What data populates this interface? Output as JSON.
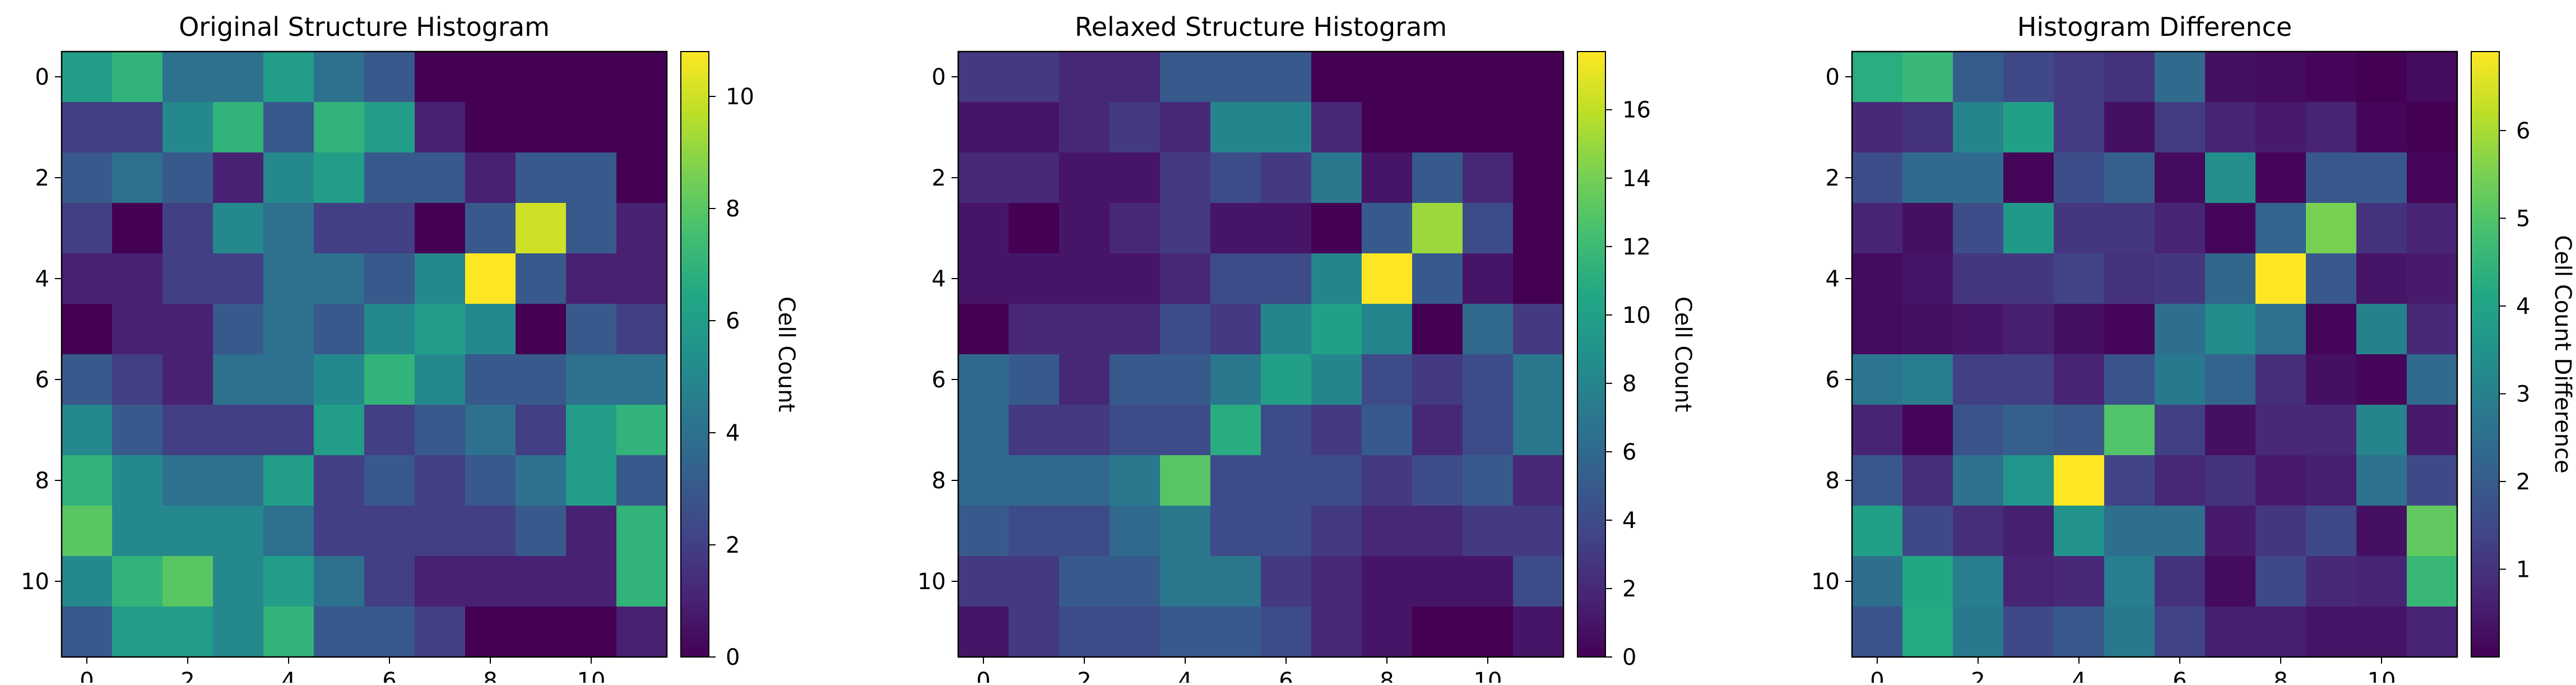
{
  "chart_data": [
    {
      "type": "heatmap",
      "title": "Original Structure Histogram",
      "colorbar_label": "Cell Count",
      "colormap": "viridis",
      "vmin": 0,
      "vmax": 10.8,
      "colorbar_ticks": [
        0,
        2,
        4,
        6,
        8,
        10
      ],
      "x_ticks": [
        0,
        2,
        4,
        6,
        8,
        10
      ],
      "y_ticks": [
        0,
        2,
        4,
        6,
        8,
        10
      ],
      "matrix": [
        [
          6,
          7,
          4,
          4,
          6,
          4,
          3,
          0,
          0,
          0,
          0,
          0
        ],
        [
          2,
          2,
          5,
          7,
          3,
          7,
          6,
          1,
          0,
          0,
          0,
          0
        ],
        [
          3,
          4,
          3,
          1,
          5,
          6,
          3,
          3,
          1,
          3,
          3,
          0
        ],
        [
          2,
          0,
          2,
          5,
          4,
          2,
          2,
          0,
          3,
          10,
          3,
          1
        ],
        [
          1,
          1,
          2,
          2,
          4,
          4,
          3,
          5,
          11,
          3,
          1,
          1
        ],
        [
          0,
          1,
          1,
          3,
          4,
          3,
          5,
          6,
          5,
          0,
          3,
          2
        ],
        [
          3,
          2,
          1,
          4,
          4,
          5,
          7,
          5,
          3,
          3,
          4,
          4
        ],
        [
          5,
          3,
          2,
          2,
          2,
          6,
          2,
          3,
          4,
          2,
          6,
          7
        ],
        [
          7,
          5,
          4,
          4,
          6,
          2,
          3,
          2,
          3,
          4,
          6,
          3
        ],
        [
          8,
          5,
          5,
          5,
          4,
          2,
          2,
          2,
          2,
          3,
          1,
          7
        ],
        [
          5,
          7,
          8,
          5,
          6,
          4,
          2,
          1,
          1,
          1,
          1,
          7
        ],
        [
          3,
          6,
          6,
          5,
          7,
          3,
          3,
          2,
          0,
          0,
          0,
          1
        ]
      ]
    },
    {
      "type": "heatmap",
      "title": "Relaxed Structure Histogram",
      "colorbar_label": "Cell Count",
      "colormap": "viridis",
      "vmin": 0,
      "vmax": 17.7,
      "colorbar_ticks": [
        0,
        2,
        4,
        6,
        8,
        10,
        12,
        14,
        16
      ],
      "x_ticks": [
        0,
        2,
        4,
        6,
        8,
        10
      ],
      "y_ticks": [
        0,
        2,
        4,
        6,
        8,
        10
      ],
      "matrix": [
        [
          3,
          3,
          2,
          2,
          5,
          5,
          5,
          0,
          0,
          0,
          0,
          0
        ],
        [
          1,
          1,
          2,
          3,
          2,
          8,
          8,
          2,
          0,
          0,
          0,
          0
        ],
        [
          2,
          2,
          1,
          1,
          3,
          4,
          3,
          7,
          1,
          5,
          2,
          0
        ],
        [
          1,
          0,
          1,
          2,
          3,
          1,
          1,
          0,
          5,
          15,
          4,
          0
        ],
        [
          1,
          1,
          1,
          1,
          2,
          4,
          4,
          8,
          18,
          5,
          1,
          0
        ],
        [
          0,
          2,
          2,
          2,
          4,
          3,
          8,
          10,
          8,
          0,
          6,
          3
        ],
        [
          6,
          5,
          2,
          5,
          5,
          7,
          10,
          8,
          4,
          3,
          4,
          7
        ],
        [
          6,
          3,
          3,
          4,
          4,
          11,
          4,
          3,
          5,
          2,
          4,
          7
        ],
        [
          6,
          6,
          6,
          7,
          13,
          4,
          4,
          4,
          3,
          4,
          5,
          2
        ],
        [
          5,
          4,
          4,
          6,
          7,
          4,
          4,
          3,
          2,
          2,
          3,
          3
        ],
        [
          3,
          3,
          5,
          5,
          7,
          7,
          3,
          2,
          1,
          1,
          1,
          4
        ],
        [
          1,
          3,
          4,
          4,
          5,
          5,
          4,
          2,
          1,
          0,
          0,
          1
        ]
      ]
    },
    {
      "type": "heatmap",
      "title": "Histogram Difference",
      "colorbar_label": "Cell Count Difference",
      "colormap": "viridis",
      "vmin": 0,
      "vmax": 6.9,
      "colorbar_ticks": [
        1,
        2,
        3,
        4,
        5,
        6
      ],
      "x_ticks": [
        0,
        2,
        4,
        6,
        8,
        10
      ],
      "y_ticks": [
        0,
        2,
        4,
        6,
        8,
        10
      ],
      "matrix": [
        [
          4.3,
          4.6,
          2.0,
          1.5,
          1.2,
          1.0,
          2.4,
          0.3,
          0.2,
          0.1,
          0.0,
          0.2
        ],
        [
          0.8,
          1.0,
          3.1,
          3.9,
          1.2,
          0.3,
          1.2,
          0.7,
          0.5,
          0.7,
          0.1,
          0.0
        ],
        [
          1.6,
          2.4,
          2.4,
          0.1,
          1.6,
          2.1,
          0.2,
          3.4,
          0.1,
          1.9,
          1.9,
          0.1
        ],
        [
          0.7,
          0.3,
          1.6,
          3.7,
          1.1,
          1.1,
          0.7,
          0.1,
          2.2,
          5.5,
          1.0,
          0.7
        ],
        [
          0.2,
          0.4,
          1.1,
          1.1,
          1.4,
          1.0,
          1.1,
          2.3,
          6.9,
          1.9,
          0.4,
          0.5
        ],
        [
          0.2,
          0.3,
          0.4,
          0.6,
          0.3,
          0.1,
          2.5,
          3.3,
          2.6,
          0.1,
          3.0,
          0.8
        ],
        [
          2.7,
          2.9,
          1.3,
          1.3,
          0.7,
          1.8,
          2.8,
          2.2,
          0.9,
          0.3,
          0.1,
          2.4
        ],
        [
          0.7,
          0.1,
          1.8,
          2.1,
          1.9,
          5.0,
          1.3,
          0.3,
          0.8,
          0.8,
          3.1,
          0.5
        ],
        [
          1.9,
          0.9,
          2.6,
          3.6,
          6.9,
          1.4,
          0.8,
          1.0,
          0.5,
          0.6,
          2.6,
          1.5
        ],
        [
          3.9,
          1.5,
          0.9,
          0.6,
          3.5,
          2.5,
          2.5,
          0.5,
          1.1,
          1.5,
          0.3,
          5.2
        ],
        [
          2.5,
          4.1,
          2.9,
          0.7,
          0.8,
          2.9,
          1.0,
          0.2,
          1.5,
          0.8,
          0.7,
          4.6
        ],
        [
          1.8,
          4.2,
          2.8,
          1.5,
          1.9,
          2.8,
          1.4,
          0.6,
          0.6,
          0.4,
          0.4,
          0.7
        ]
      ]
    }
  ]
}
